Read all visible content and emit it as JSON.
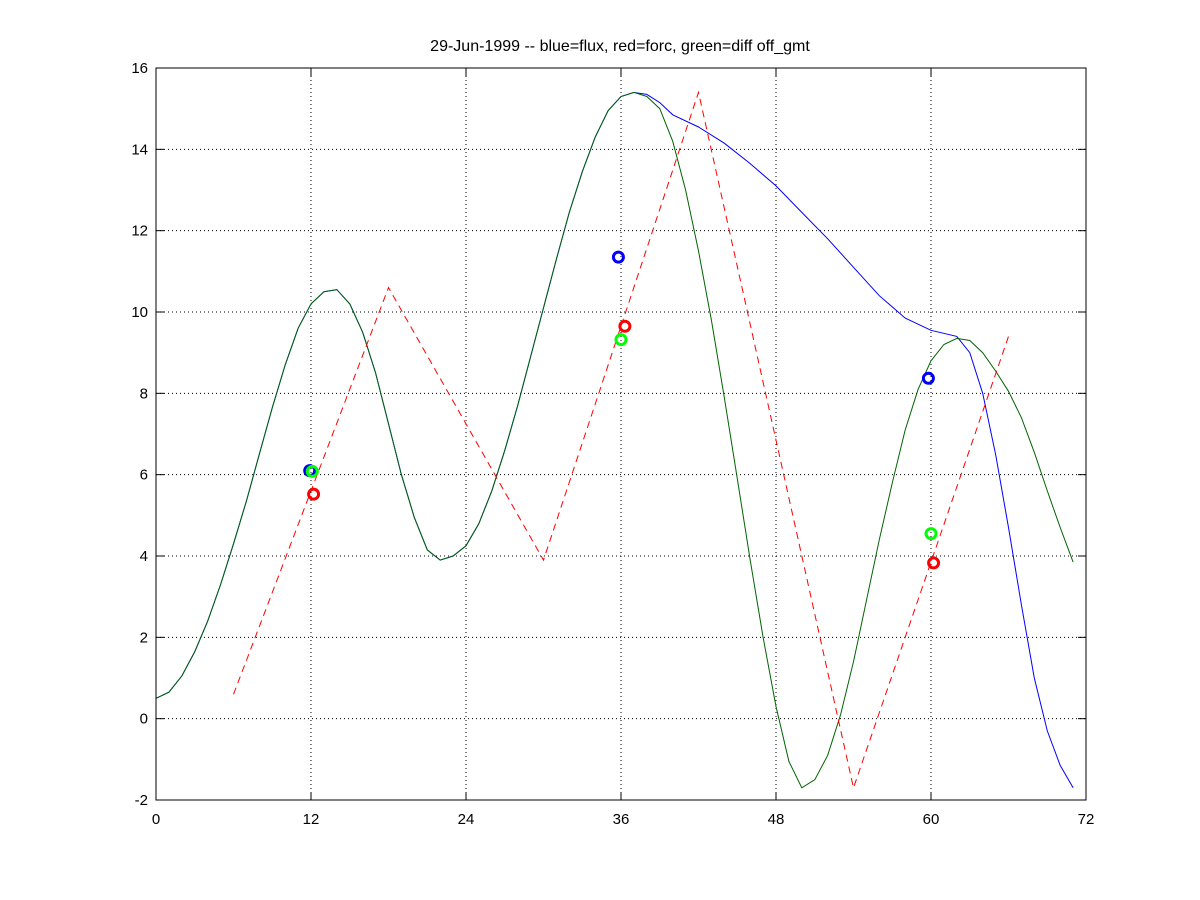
{
  "page": {
    "background": "#ffffff"
  },
  "chart_data": {
    "type": "line",
    "title": "29-Jun-1999 -- blue=flux, red=forc, green=diff off_gmt",
    "xlabel": "",
    "ylabel": "",
    "xlim": [
      0,
      72
    ],
    "ylim": [
      -2,
      16
    ],
    "xticks": [
      0,
      12,
      24,
      36,
      48,
      60,
      72
    ],
    "yticks": [
      -2,
      0,
      2,
      4,
      6,
      8,
      10,
      12,
      14,
      16
    ],
    "grid": true,
    "grid_style": "dotted",
    "legend": "none",
    "series": [
      {
        "color": "#0000ff",
        "style": "solid",
        "x": [
          0,
          1,
          2,
          3,
          4,
          5,
          6,
          7,
          8,
          9,
          10,
          11,
          12,
          13,
          14,
          15,
          16,
          17,
          18,
          19,
          20,
          21,
          22,
          23,
          24,
          25,
          26,
          27,
          28,
          29,
          30,
          31,
          32,
          33,
          34,
          35,
          36,
          37,
          38,
          39,
          40,
          42,
          44,
          46,
          48,
          50,
          52,
          54,
          56,
          58,
          60,
          62,
          63,
          64,
          65,
          66,
          67,
          68,
          69,
          70,
          71
        ],
        "y": [
          0.5,
          0.65,
          1.05,
          1.65,
          2.4,
          3.3,
          4.3,
          5.35,
          6.5,
          7.65,
          8.7,
          9.6,
          10.2,
          10.5,
          10.55,
          10.2,
          9.5,
          8.5,
          7.25,
          6.0,
          4.95,
          4.15,
          3.9,
          4.0,
          4.25,
          4.8,
          5.6,
          6.6,
          7.7,
          8.9,
          10.1,
          11.3,
          12.45,
          13.45,
          14.3,
          14.95,
          15.3,
          15.4,
          15.35,
          15.15,
          14.85,
          14.55,
          14.15,
          13.65,
          13.1,
          12.45,
          11.8,
          11.1,
          10.4,
          9.85,
          9.55,
          9.4,
          9.0,
          8.0,
          6.5,
          4.7,
          2.8,
          1.0,
          -0.3,
          -1.15,
          -1.7
        ]
      },
      {
        "color": "#006400",
        "style": "solid",
        "x": [
          0,
          1,
          2,
          3,
          4,
          5,
          6,
          7,
          8,
          9,
          10,
          11,
          12,
          13,
          14,
          15,
          16,
          17,
          18,
          19,
          20,
          21,
          22,
          23,
          24,
          25,
          26,
          27,
          28,
          29,
          30,
          31,
          32,
          33,
          34,
          35,
          36,
          37,
          38,
          39,
          40,
          41,
          42,
          43,
          44,
          45,
          46,
          47,
          48,
          49,
          50,
          51,
          52,
          53,
          54,
          55,
          56,
          57,
          58,
          59,
          60,
          61,
          62,
          63,
          64,
          65,
          66,
          67,
          68,
          69,
          70,
          71
        ],
        "y": [
          0.5,
          0.65,
          1.05,
          1.65,
          2.4,
          3.3,
          4.3,
          5.35,
          6.5,
          7.65,
          8.7,
          9.6,
          10.2,
          10.5,
          10.55,
          10.2,
          9.5,
          8.5,
          7.25,
          6.0,
          4.95,
          4.15,
          3.9,
          4.0,
          4.25,
          4.8,
          5.6,
          6.6,
          7.7,
          8.9,
          10.1,
          11.3,
          12.45,
          13.45,
          14.3,
          14.95,
          15.3,
          15.4,
          15.3,
          15.0,
          14.2,
          13.0,
          11.5,
          9.8,
          7.9,
          5.9,
          3.9,
          2.0,
          0.3,
          -1.05,
          -1.7,
          -1.5,
          -0.9,
          0.1,
          1.4,
          2.9,
          4.4,
          5.8,
          7.1,
          8.1,
          8.8,
          9.2,
          9.35,
          9.3,
          9.0,
          8.55,
          8.05,
          7.4,
          6.55,
          5.6,
          4.7,
          3.85
        ]
      },
      {
        "color": "#ff0000",
        "style": "dashed",
        "x": [
          6,
          18,
          30,
          42,
          54,
          66
        ],
        "y": [
          0.6,
          10.6,
          3.9,
          15.4,
          -1.7,
          9.4
        ]
      }
    ],
    "markers": [
      {
        "color": "#0000ff",
        "x": 11.9,
        "y": 6.1
      },
      {
        "color": "#00ff00",
        "x": 12.1,
        "y": 6.08
      },
      {
        "color": "#ff0000",
        "x": 12.2,
        "y": 5.52
      },
      {
        "color": "#0000ff",
        "x": 35.8,
        "y": 11.35
      },
      {
        "color": "#ff0000",
        "x": 36.3,
        "y": 9.65
      },
      {
        "color": "#00ff00",
        "x": 36.0,
        "y": 9.32
      },
      {
        "color": "#0000ff",
        "x": 59.8,
        "y": 8.37
      },
      {
        "color": "#00ff00",
        "x": 60.0,
        "y": 4.55
      },
      {
        "color": "#ff0000",
        "x": 60.2,
        "y": 3.83
      }
    ]
  }
}
